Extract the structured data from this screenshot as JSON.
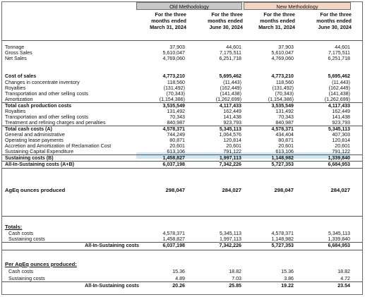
{
  "headers": {
    "old": "Old Methodology",
    "new": "New Methodology",
    "col1": "For the three\nmonths ended\nMarch 31, 2024",
    "col2": "For the three\nmonths ended\nJune 30, 2024",
    "col3": "For the three\nmonths ended\nMarch 31, 2024",
    "col4": "For the three\nmonths ended\nJune 30, 2024"
  },
  "rows": [
    {
      "label": "Tonnage",
      "v": [
        "37,903",
        "44,601",
        "37,903",
        "44,601"
      ]
    },
    {
      "label": "Gross Sales",
      "v": [
        "5,610,047",
        "7,175,511",
        "5,610,047",
        "7,175,511"
      ]
    },
    {
      "label": "Net Sales",
      "v": [
        "4,769,060",
        "6,251,718",
        "4,769,060",
        "6,251,718"
      ]
    },
    {
      "label": "Cost of sales",
      "v": [
        "4,773,210",
        "5,695,462",
        "4,773,210",
        "5,695,462"
      ]
    },
    {
      "label": "Changes in concentrate inventory",
      "v": [
        "118,560",
        "(11,443)",
        "118,560",
        "(11,443)"
      ]
    },
    {
      "label": "Royalties",
      "v": [
        "(131,492)",
        "(162,449)",
        "(131,492)",
        "(162,449)"
      ]
    },
    {
      "label": "Transportation and other selling costs",
      "v": [
        "(70,343)",
        "(141,438)",
        "(70,343)",
        "(141,438)"
      ]
    },
    {
      "label": "Amortization",
      "v": [
        "(1,154,386)",
        "(1,262,699)",
        "(1,154,386)",
        "(1,262,699)"
      ]
    },
    {
      "label": "Total cash production costs",
      "v": [
        "3,535,549",
        "4,117,433",
        "3,535,549",
        "4,117,433"
      ]
    },
    {
      "label": "Royalties",
      "v": [
        "131,492",
        "162,449",
        "131,492",
        "162,449"
      ]
    },
    {
      "label": "Transportation and other selling costs",
      "v": [
        "70,343",
        "141,438",
        "70,343",
        "141,438"
      ]
    },
    {
      "label": "Treatment and refining charges and penalties",
      "v": [
        "840,987",
        "923,793",
        "840,987",
        "923,793"
      ]
    },
    {
      "label": "Total cash costs (A)",
      "v": [
        "4,578,371",
        "5,345,113",
        "4,578,371",
        "5,345,113"
      ]
    },
    {
      "label": "General and administrative",
      "v": [
        "744,249",
        "1,064,576",
        "434,404",
        "407,303"
      ]
    },
    {
      "label": "Operating lease payments",
      "v": [
        "80,871",
        "120,814",
        "80,871",
        "120,814"
      ]
    },
    {
      "label": "Accretion and Amortization of Reclamation Cost",
      "v": [
        "20,601",
        "20,601",
        "20,601",
        "20,601"
      ]
    },
    {
      "label": "Sustaining Capital Expenditure",
      "v": [
        "613,106",
        "791,122",
        "613,106",
        "791,122"
      ]
    },
    {
      "label": "Sustaining costs (B)",
      "v": [
        "1,458,827",
        "1,997,113",
        "1,148,982",
        "1,339,840"
      ]
    },
    {
      "label": "All-In-Sustaining costs (A+B)",
      "v": [
        "6,037,198",
        "7,342,226",
        "5,727,353",
        "6,684,953"
      ]
    },
    {
      "label": "AgEq ounces produced",
      "v": [
        "298,047",
        "284,027",
        "298,047",
        "284,027"
      ]
    },
    {
      "label": "Totals:",
      "v": [
        "",
        "",
        "",
        ""
      ]
    },
    {
      "label": "Cash costs",
      "v": [
        "4,578,371",
        "5,345,113",
        "4,578,371",
        "5,345,113"
      ]
    },
    {
      "label": "Sustaining costs",
      "v": [
        "1,458,827",
        "1,997,113",
        "1,148,982",
        "1,339,840"
      ]
    },
    {
      "label": "All-In-Sustaining costs",
      "v": [
        "6,037,198",
        "7,342,226",
        "5,727,353",
        "6,684,953"
      ]
    },
    {
      "label": "Per AgEq ounces produced:",
      "v": [
        "",
        "",
        "",
        ""
      ]
    },
    {
      "label": "Cash costs",
      "v": [
        "15.36",
        "18.82",
        "15.36",
        "18.82"
      ]
    },
    {
      "label": "Sustaining costs",
      "v": [
        "4.89",
        "7.03",
        "3.86",
        "4.72"
      ]
    },
    {
      "label": "All-In-Sustaining costs",
      "v": [
        "20.26",
        "25.85",
        "19.22",
        "23.54"
      ]
    }
  ]
}
